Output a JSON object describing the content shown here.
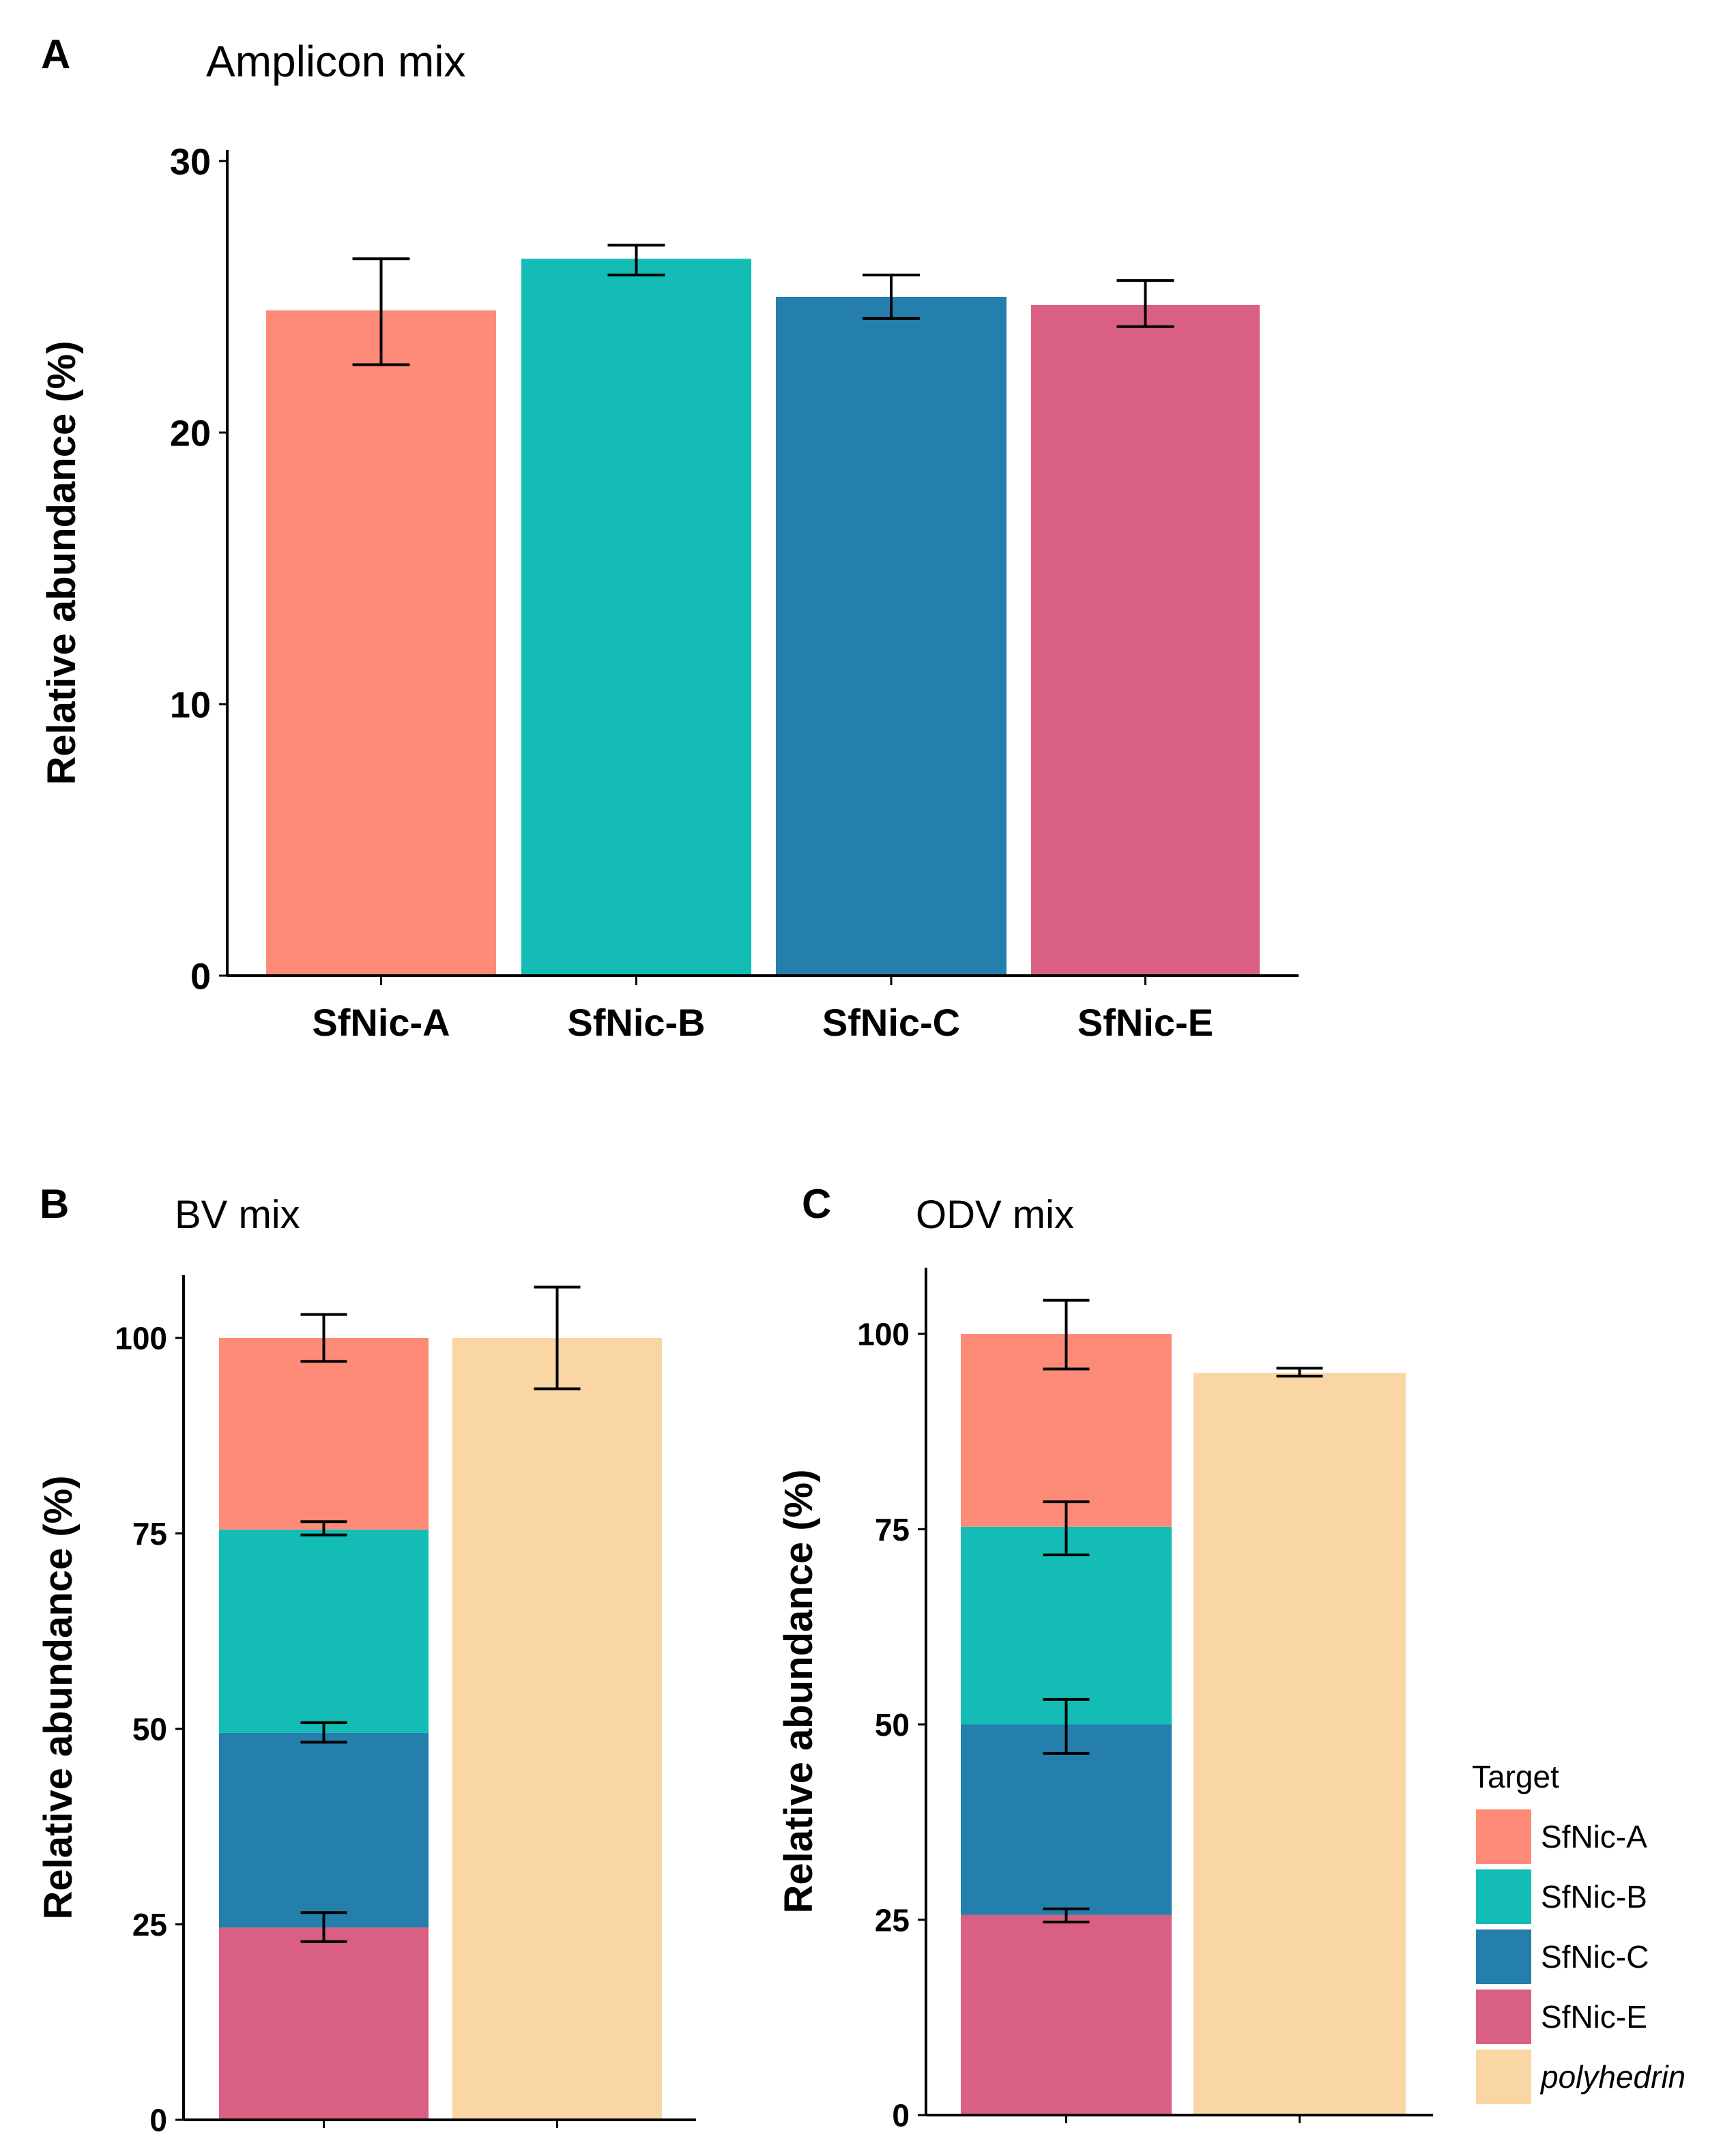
{
  "colors": {
    "SfNic-A": "#FD8B77",
    "SfNic-B": "#13BDB6",
    "SfNic-C": "#247FAC",
    "SfNic-E": "#DA6083",
    "polyhedrin": "#F9D6A3"
  },
  "legend": {
    "title": "Target",
    "entries": [
      "SfNic-A",
      "SfNic-B",
      "SfNic-C",
      "SfNic-E",
      "polyhedrin"
    ]
  },
  "chart_data": [
    {
      "panel": "A",
      "type": "bar",
      "title": "Amplicon mix",
      "ylabel": "Relative abundance (%)",
      "xlabel": "",
      "ylim": [
        0,
        30
      ],
      "yticks": [
        0,
        10,
        20,
        30
      ],
      "categories": [
        "SfNic-A",
        "SfNic-B",
        "SfNic-C",
        "SfNic-E"
      ],
      "values": [
        24.5,
        26.4,
        25.0,
        24.7
      ],
      "error_low": [
        22.5,
        25.8,
        24.2,
        23.9
      ],
      "error_high": [
        26.4,
        26.9,
        25.8,
        25.6
      ]
    },
    {
      "panel": "B",
      "type": "bar",
      "stacked": true,
      "title": "BV mix",
      "ylabel": "Relative abundance (%)",
      "ylim": [
        0,
        108
      ],
      "yticks": [
        0,
        25,
        50,
        75,
        100
      ],
      "bars": [
        {
          "segments": [
            {
              "name": "SfNic-E",
              "top": 24.6,
              "err": [
                22.8,
                26.5
              ]
            },
            {
              "name": "SfNic-C",
              "top": 49.5,
              "err": [
                48.3,
                50.8
              ]
            },
            {
              "name": "SfNic-B",
              "top": 75.5,
              "err": [
                74.8,
                76.5
              ]
            },
            {
              "name": "SfNic-A",
              "top": 100,
              "err": [
                97.0,
                103.0
              ]
            }
          ]
        },
        {
          "segments": [
            {
              "name": "polyhedrin",
              "top": 100,
              "err": [
                93.5,
                106.5
              ]
            }
          ]
        }
      ]
    },
    {
      "panel": "C",
      "type": "bar",
      "stacked": true,
      "title": "ODV mix",
      "ylabel": "Relative abundance (%)",
      "ylim": [
        0,
        108
      ],
      "yticks": [
        0,
        25,
        50,
        75,
        100
      ],
      "bars": [
        {
          "segments": [
            {
              "name": "SfNic-E",
              "top": 25.6,
              "err": [
                24.7,
                26.4
              ]
            },
            {
              "name": "SfNic-C",
              "top": 50.0,
              "err": [
                46.3,
                53.2
              ]
            },
            {
              "name": "SfNic-B",
              "top": 75.3,
              "err": [
                71.7,
                78.5
              ]
            },
            {
              "name": "SfNic-A",
              "top": 100,
              "err": [
                95.5,
                104.3
              ]
            }
          ]
        },
        {
          "segments": [
            {
              "name": "polyhedrin",
              "top": 95.0,
              "err": [
                94.6,
                95.6
              ]
            }
          ]
        }
      ]
    }
  ]
}
